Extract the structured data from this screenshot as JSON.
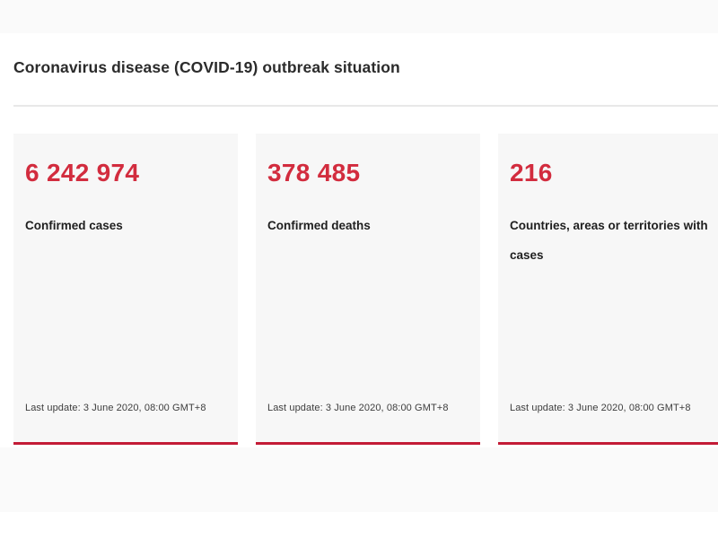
{
  "page": {
    "title": "Coronavirus disease (COVID-19) outbreak situation"
  },
  "cards": [
    {
      "value": "6 242 974",
      "label": "Confirmed cases",
      "last_update": "Last update: 3 June 2020, 08:00 GMT+8"
    },
    {
      "value": "378 485",
      "label": "Confirmed deaths",
      "last_update": "Last update: 3 June 2020, 08:00 GMT+8"
    },
    {
      "value": "216",
      "label": "Countries, areas or territories with cases",
      "last_update": "Last update: 3 June 2020, 08:00 GMT+8"
    }
  ],
  "colors": {
    "accent_red": "#d22c3e",
    "card_border_red": "#c31b36",
    "card_background": "#f7f7f7",
    "band_background": "#fafafa",
    "divider": "#e8e8e8",
    "title_text": "#2b2b2b",
    "label_text": "#1f1f1f",
    "update_text": "#3d3d3d"
  }
}
